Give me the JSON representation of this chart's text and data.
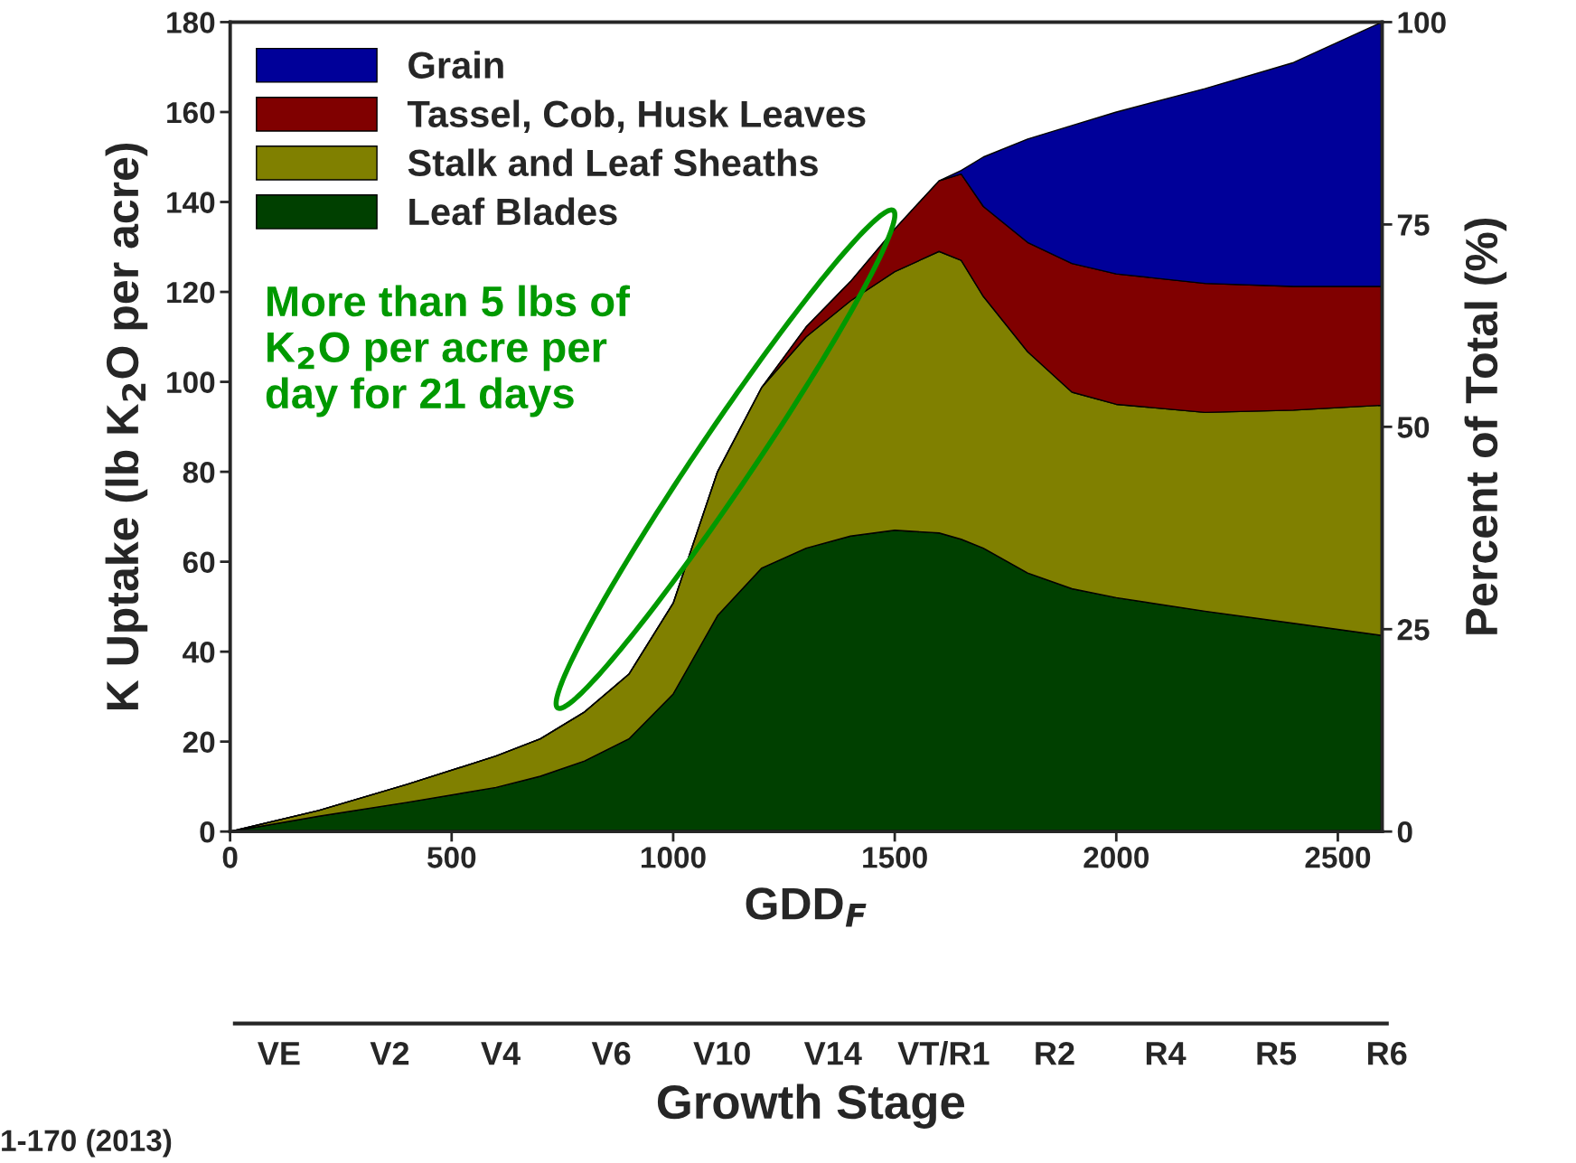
{
  "chart_data": [
    {
      "type": "area",
      "stacked": true,
      "xlabel": "GDD$_{F}$",
      "ylabel": "K Uptake (lb K$_{2}$O per acre)",
      "y2label": "Percent of Total (%)",
      "x": [
        0,
        200,
        400,
        600,
        700,
        800,
        900,
        1000,
        1100,
        1200,
        1300,
        1400,
        1500,
        1600,
        1650,
        1700,
        1800,
        1900,
        2000,
        2200,
        2400,
        2600
      ],
      "series": [
        {
          "name": "Leaf Blades",
          "color": "#004000",
          "values": [
            0,
            3.4,
            6.5,
            9.8,
            12.3,
            15.7,
            20.6,
            30.6,
            48,
            58.6,
            63,
            65.7,
            67,
            66.4,
            65,
            63,
            57.5,
            54,
            52,
            49,
            46.3,
            43.6
          ]
        },
        {
          "name": "Stalk and Leaf Sheaths",
          "color": "#808000",
          "values": [
            0,
            1.3,
            4.0,
            7.0,
            8.3,
            10.9,
            14.4,
            20.2,
            32,
            40.2,
            47,
            52.3,
            57.5,
            62.6,
            62,
            56,
            49.2,
            43.7,
            43,
            44.2,
            47.4,
            51.2
          ]
        },
        {
          "name": "Tassel, Cob, Husk Leaves",
          "color": "#800000",
          "values": [
            0,
            0,
            0,
            0,
            0,
            0,
            0,
            0,
            0,
            0,
            2.2,
            4.3,
            9.5,
            15.7,
            19.2,
            20,
            24.3,
            28.6,
            29,
            28.7,
            27.5,
            26.4
          ]
        },
        {
          "name": "Grain",
          "color": "#000099",
          "values": [
            0,
            0,
            0,
            0,
            0,
            0,
            0,
            0,
            0,
            0,
            0,
            0,
            0,
            0,
            0.8,
            11,
            23,
            30.7,
            36,
            43.3,
            49.8,
            58.8
          ]
        }
      ],
      "xlim": [
        0,
        2600
      ],
      "xticks": [
        0,
        500,
        1000,
        1500,
        2000,
        2500
      ],
      "ylim": [
        0,
        180
      ],
      "yticks": [
        0,
        20,
        40,
        60,
        80,
        100,
        120,
        140,
        160,
        180
      ],
      "y2lim": [
        0,
        100
      ],
      "y2ticks": [
        0,
        25,
        50,
        75,
        100
      ],
      "legend": "top left",
      "annotations": [
        "More than 5 lbs of K$_{2}$O per acre per day for 21 days",
        "1-170 (2013)"
      ]
    },
    {
      "type": "other",
      "xlabel": "Growth Stage",
      "categories": [
        "VE",
        "V2",
        "V4",
        "V6",
        "V10",
        "V14",
        "VT/R1",
        "R2",
        "R4",
        "R5",
        "R6"
      ]
    }
  ]
}
